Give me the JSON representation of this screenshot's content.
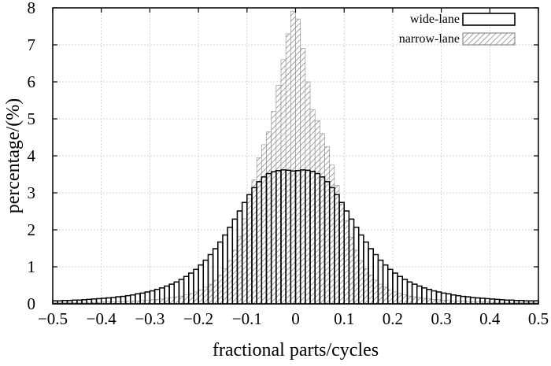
{
  "chart_data": {
    "type": "bar",
    "title": "",
    "xlabel": "fractional parts/cycles",
    "ylabel": "percentage/(%)",
    "xlim": [
      -0.5,
      0.5
    ],
    "ylim": [
      0,
      8
    ],
    "bin_width": 0.01,
    "grid": true,
    "legend_position": "top-right",
    "x_ticks": [
      -0.5,
      -0.4,
      -0.3,
      -0.2,
      -0.1,
      0,
      0.1,
      0.2,
      0.3,
      0.4,
      0.5
    ],
    "x_tick_labels": [
      "−0.5",
      "−0.4",
      "−0.3",
      "−0.2",
      "−0.1",
      "0",
      "0.1",
      "0.2",
      "0.3",
      "0.4",
      "0.5"
    ],
    "y_ticks": [
      0,
      1,
      2,
      3,
      4,
      5,
      6,
      7,
      8
    ],
    "y_tick_labels": [
      "0",
      "1",
      "2",
      "3",
      "4",
      "5",
      "6",
      "7",
      "8"
    ],
    "series": [
      {
        "name": "wide-lane",
        "style": "outline",
        "x": [
          -0.495,
          -0.485,
          -0.475,
          -0.465,
          -0.455,
          -0.445,
          -0.435,
          -0.425,
          -0.415,
          -0.405,
          -0.395,
          -0.385,
          -0.375,
          -0.365,
          -0.355,
          -0.345,
          -0.335,
          -0.325,
          -0.315,
          -0.305,
          -0.295,
          -0.285,
          -0.275,
          -0.265,
          -0.255,
          -0.245,
          -0.235,
          -0.225,
          -0.215,
          -0.205,
          -0.195,
          -0.185,
          -0.175,
          -0.165,
          -0.155,
          -0.145,
          -0.135,
          -0.125,
          -0.115,
          -0.105,
          -0.095,
          -0.085,
          -0.075,
          -0.065,
          -0.055,
          -0.045,
          -0.035,
          -0.025,
          -0.015,
          -0.005,
          0.005,
          0.015,
          0.025,
          0.035,
          0.045,
          0.055,
          0.065,
          0.075,
          0.085,
          0.095,
          0.105,
          0.115,
          0.125,
          0.135,
          0.145,
          0.155,
          0.165,
          0.175,
          0.185,
          0.195,
          0.205,
          0.215,
          0.225,
          0.235,
          0.245,
          0.255,
          0.265,
          0.275,
          0.285,
          0.295,
          0.305,
          0.315,
          0.325,
          0.335,
          0.345,
          0.355,
          0.365,
          0.375,
          0.385,
          0.395,
          0.405,
          0.415,
          0.425,
          0.435,
          0.445,
          0.455,
          0.465,
          0.475,
          0.485,
          0.495
        ],
        "values": [
          0.08,
          0.08,
          0.09,
          0.09,
          0.1,
          0.1,
          0.11,
          0.12,
          0.13,
          0.14,
          0.15,
          0.16,
          0.17,
          0.19,
          0.2,
          0.22,
          0.24,
          0.27,
          0.29,
          0.32,
          0.35,
          0.39,
          0.43,
          0.48,
          0.53,
          0.59,
          0.66,
          0.74,
          0.83,
          0.93,
          1.05,
          1.18,
          1.33,
          1.49,
          1.67,
          1.86,
          2.07,
          2.29,
          2.51,
          2.74,
          2.95,
          3.14,
          3.3,
          3.43,
          3.52,
          3.57,
          3.6,
          3.62,
          3.61,
          3.59,
          3.6,
          3.62,
          3.61,
          3.58,
          3.52,
          3.43,
          3.3,
          3.14,
          2.95,
          2.74,
          2.51,
          2.29,
          2.07,
          1.86,
          1.67,
          1.49,
          1.33,
          1.18,
          1.05,
          0.93,
          0.83,
          0.74,
          0.66,
          0.59,
          0.53,
          0.48,
          0.43,
          0.39,
          0.35,
          0.32,
          0.29,
          0.27,
          0.24,
          0.22,
          0.2,
          0.19,
          0.17,
          0.16,
          0.15,
          0.14,
          0.13,
          0.12,
          0.11,
          0.1,
          0.1,
          0.09,
          0.09,
          0.08,
          0.08,
          0.08
        ]
      },
      {
        "name": "narrow-lane",
        "style": "hatched",
        "x": [
          -0.495,
          -0.485,
          -0.475,
          -0.465,
          -0.455,
          -0.445,
          -0.435,
          -0.425,
          -0.415,
          -0.405,
          -0.395,
          -0.385,
          -0.375,
          -0.365,
          -0.355,
          -0.345,
          -0.335,
          -0.325,
          -0.315,
          -0.305,
          -0.295,
          -0.285,
          -0.275,
          -0.265,
          -0.255,
          -0.245,
          -0.235,
          -0.225,
          -0.215,
          -0.205,
          -0.195,
          -0.185,
          -0.175,
          -0.165,
          -0.155,
          -0.145,
          -0.135,
          -0.125,
          -0.115,
          -0.105,
          -0.095,
          -0.085,
          -0.075,
          -0.065,
          -0.055,
          -0.045,
          -0.035,
          -0.025,
          -0.015,
          -0.005,
          0.005,
          0.015,
          0.025,
          0.035,
          0.045,
          0.055,
          0.065,
          0.075,
          0.085,
          0.095,
          0.105,
          0.115,
          0.125,
          0.135,
          0.145,
          0.155,
          0.165,
          0.175,
          0.185,
          0.195,
          0.205,
          0.215,
          0.225,
          0.235,
          0.245,
          0.255,
          0.265,
          0.275,
          0.285,
          0.295,
          0.305,
          0.315,
          0.325,
          0.335,
          0.345,
          0.355,
          0.365,
          0.375,
          0.385,
          0.395,
          0.405,
          0.415,
          0.425,
          0.435,
          0.445,
          0.455,
          0.465,
          0.475,
          0.485,
          0.495
        ],
        "values": [
          0.03,
          0.03,
          0.03,
          0.03,
          0.03,
          0.04,
          0.04,
          0.04,
          0.04,
          0.04,
          0.05,
          0.05,
          0.05,
          0.06,
          0.06,
          0.07,
          0.07,
          0.08,
          0.09,
          0.1,
          0.11,
          0.12,
          0.13,
          0.15,
          0.17,
          0.19,
          0.21,
          0.24,
          0.28,
          0.32,
          0.38,
          0.45,
          0.53,
          0.64,
          0.78,
          0.95,
          1.17,
          1.45,
          1.82,
          2.3,
          2.85,
          3.35,
          3.95,
          4.3,
          4.65,
          5.2,
          5.9,
          6.6,
          7.3,
          7.9,
          7.7,
          6.9,
          6.0,
          5.25,
          4.95,
          4.6,
          4.25,
          3.75,
          3.2,
          2.7,
          2.25,
          1.8,
          1.45,
          1.17,
          0.95,
          0.78,
          0.64,
          0.53,
          0.45,
          0.38,
          0.32,
          0.28,
          0.24,
          0.21,
          0.19,
          0.17,
          0.15,
          0.13,
          0.12,
          0.11,
          0.1,
          0.09,
          0.08,
          0.07,
          0.07,
          0.06,
          0.06,
          0.05,
          0.05,
          0.05,
          0.04,
          0.04,
          0.04,
          0.04,
          0.04,
          0.03,
          0.03,
          0.03,
          0.03,
          0.03
        ]
      }
    ]
  }
}
